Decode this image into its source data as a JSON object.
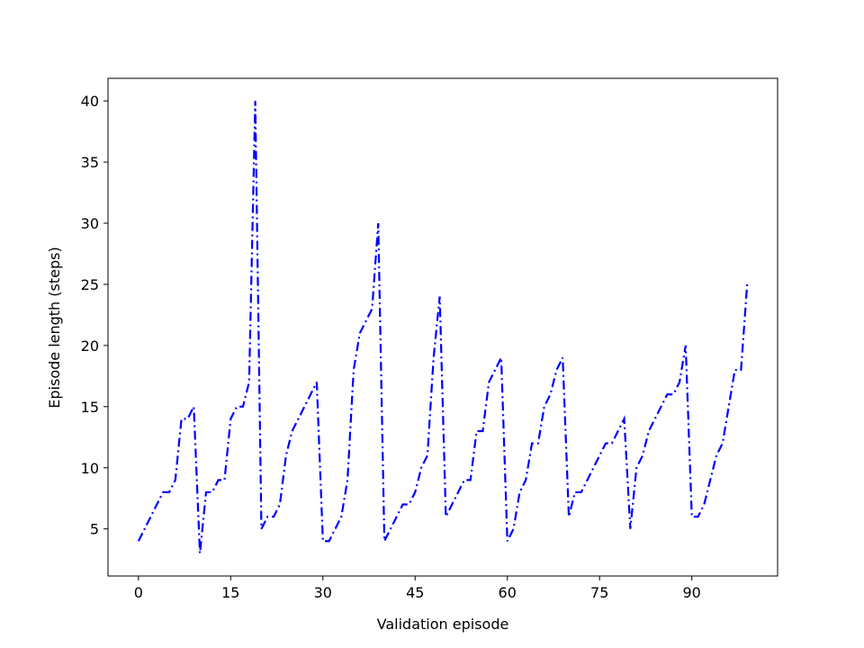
{
  "chart_data": {
    "type": "line",
    "xlabel": "Validation episode",
    "ylabel": "Episode length (steps)",
    "x": [
      0,
      1,
      2,
      3,
      4,
      5,
      6,
      7,
      8,
      9,
      10,
      11,
      12,
      13,
      14,
      15,
      16,
      17,
      18,
      19,
      20,
      21,
      22,
      23,
      24,
      25,
      26,
      27,
      28,
      29,
      30,
      31,
      32,
      33,
      34,
      35,
      36,
      37,
      38,
      39,
      40,
      41,
      42,
      43,
      44,
      45,
      46,
      47,
      48,
      49,
      50,
      51,
      52,
      53,
      54,
      55,
      56,
      57,
      58,
      59,
      60,
      61,
      62,
      63,
      64,
      65,
      66,
      67,
      68,
      69,
      70,
      71,
      72,
      73,
      74,
      75,
      76,
      77,
      78,
      79,
      80,
      81,
      82,
      83,
      84,
      85,
      86,
      87,
      88,
      89,
      90,
      91,
      92,
      93,
      94,
      95,
      96,
      97,
      98,
      99
    ],
    "series": [
      {
        "color": "#0000ff",
        "linestyle": "dashdot",
        "values": [
          4,
          5,
          6,
          7,
          8,
          8,
          9,
          14,
          14,
          15,
          3,
          8,
          8,
          9,
          9,
          14,
          15,
          15,
          17,
          40,
          5,
          6,
          6,
          7,
          11,
          13,
          14,
          15,
          16,
          17,
          4,
          4,
          5,
          6,
          9,
          18,
          21,
          22,
          23,
          30,
          4,
          5,
          6,
          7,
          7,
          8,
          10,
          11,
          19,
          24,
          6,
          7,
          8,
          9,
          9,
          13,
          13,
          17,
          18,
          19,
          4,
          5,
          8,
          9,
          12,
          12,
          15,
          16,
          18,
          19,
          6,
          8,
          8,
          9,
          10,
          11,
          12,
          12,
          13,
          14,
          5,
          10,
          11,
          13,
          14,
          15,
          16,
          16,
          17,
          20,
          6,
          6,
          7,
          9,
          11,
          12,
          15,
          18,
          18,
          25
        ]
      }
    ],
    "xlim": [
      -4.95,
      103.95
    ],
    "ylim": [
      1.15,
      41.85
    ],
    "xticks": [
      0,
      15,
      30,
      45,
      60,
      75,
      90
    ],
    "yticks": [
      5,
      10,
      15,
      20,
      25,
      30,
      35,
      40
    ]
  }
}
